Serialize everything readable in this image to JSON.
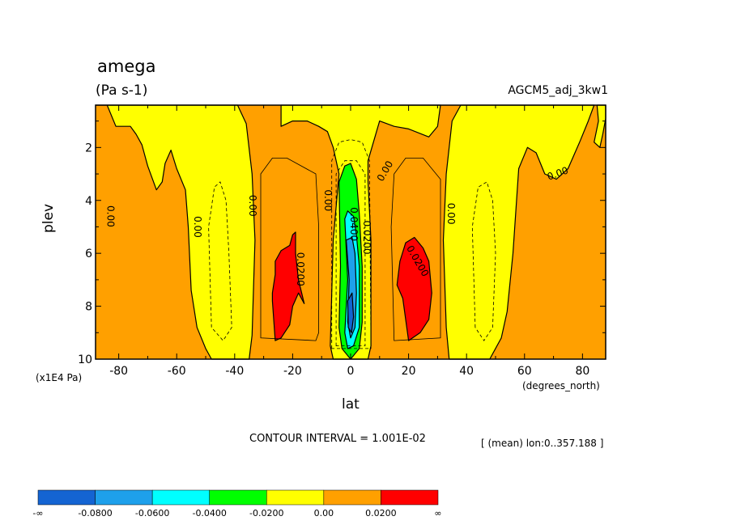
{
  "chart_data": {
    "type": "contour",
    "title": "amega",
    "units": "(Pa s-1)",
    "dataset": "AGCM5_adj_3kw1",
    "xlabel": "lat",
    "xunits": "(degrees_north)",
    "ylabel": "plev",
    "yunits": "(x1E4 Pa)",
    "xlim": [
      -88,
      88
    ],
    "ylim": [
      10,
      0.4
    ],
    "x_ticks": [
      -80,
      -60,
      -40,
      -20,
      0,
      20,
      40,
      60,
      80
    ],
    "x_tick_labels": [
      "-80",
      "-60",
      "-40",
      "-20",
      "0",
      "20",
      "40",
      "60",
      "80"
    ],
    "y_ticks": [
      2,
      4,
      6,
      8,
      10
    ],
    "y_tick_labels": [
      "2",
      "4",
      "6",
      "8",
      "10"
    ],
    "contour_interval": "CONTOUR INTERVAL = 1.001E-02",
    "mean_note": "[ (mean) lon:0..357.188 ]",
    "contour_labels": [
      {
        "text": "0.00",
        "lat": -83,
        "plev": 4.6,
        "rot": 90
      },
      {
        "text": "0.00",
        "lat": -53,
        "plev": 5.0,
        "rot": 90
      },
      {
        "text": "0.00",
        "lat": -34,
        "plev": 4.2,
        "rot": 90
      },
      {
        "text": "0.0200",
        "lat": -17.5,
        "plev": 6.6,
        "rot": 90
      },
      {
        "text": "0.00",
        "lat": -8,
        "plev": 4.0,
        "rot": 90
      },
      {
        "text": "0.0400",
        "lat": 1,
        "plev": 4.9,
        "rot": 90
      },
      {
        "text": "0.0200",
        "lat": 5.5,
        "plev": 5.4,
        "rot": 90
      },
      {
        "text": "0.00",
        "lat": 12,
        "plev": 2.9,
        "rot": -60
      },
      {
        "text": "0.0200",
        "lat": 23,
        "plev": 6.3,
        "rot": 60
      },
      {
        "text": "0.00",
        "lat": 34.5,
        "plev": 4.5,
        "rot": 90
      },
      {
        "text": "0.00",
        "lat": 71.5,
        "plev": 3.0,
        "rot": -20
      }
    ],
    "colorbar": {
      "colors": [
        "#1464d2",
        "#1ea0eb",
        "#00ffff",
        "#00ff00",
        "#ffff00",
        "#ffa000",
        "#ff0000"
      ],
      "labels": [
        "-∞",
        "-0.0800",
        "-0.0600",
        "-0.0400",
        "-0.0200",
        "0.00",
        "0.0200",
        "∞"
      ]
    },
    "regions": [
      {
        "level": "0.00 to 0.0200",
        "color": "#ffa000",
        "polygon": [
          [
            -88,
            0.4
          ],
          [
            -88,
            10
          ],
          [
            88,
            10
          ],
          [
            88,
            0.4
          ]
        ]
      },
      {
        "level": "-0.0200 to 0.00",
        "color": "#ffff00",
        "polygon": [
          [
            -88,
            0.4
          ],
          [
            -84,
            0.4
          ],
          [
            -81,
            1.2
          ],
          [
            -76,
            1.2
          ],
          [
            -74,
            1.5
          ],
          [
            -72,
            1.9
          ],
          [
            -70,
            2.7
          ],
          [
            -67,
            3.6
          ],
          [
            -65,
            3.3
          ],
          [
            -64,
            2.6
          ],
          [
            -62,
            2.1
          ],
          [
            -60,
            2.8
          ],
          [
            -57,
            3.6
          ],
          [
            -56,
            5.0
          ],
          [
            -55,
            7.4
          ],
          [
            -53,
            8.8
          ],
          [
            -50,
            9.6
          ],
          [
            -48,
            10
          ],
          [
            -35,
            10
          ],
          [
            -34,
            9.1
          ],
          [
            -33,
            5.5
          ],
          [
            -34,
            3.0
          ],
          [
            -36,
            1.1
          ],
          [
            -39,
            0.4
          ],
          [
            -88,
            0.4
          ]
        ]
      },
      {
        "level": "-0.0200 to 0.00",
        "color": "#ffff00",
        "polygon": [
          [
            -24,
            0.4
          ],
          [
            -24,
            1.2
          ],
          [
            -20,
            1.0
          ],
          [
            -15,
            1.0
          ],
          [
            -11,
            1.2
          ],
          [
            -8,
            1.4
          ],
          [
            -6,
            2.0
          ],
          [
            -4,
            3.0
          ],
          [
            -6,
            5.5
          ],
          [
            -7,
            9.5
          ],
          [
            -6,
            10
          ],
          [
            6,
            10
          ],
          [
            7,
            9.5
          ],
          [
            7,
            5.5
          ],
          [
            6,
            3.3
          ],
          [
            6,
            2.5
          ],
          [
            10,
            1.0
          ],
          [
            15,
            1.2
          ],
          [
            20,
            1.3
          ],
          [
            27,
            1.6
          ],
          [
            30,
            1.2
          ],
          [
            31,
            0.4
          ]
        ]
      },
      {
        "level": "-0.0200 to 0.00",
        "color": "#ffff00",
        "polygon": [
          [
            38,
            0.4
          ],
          [
            35,
            1.0
          ],
          [
            33,
            3.0
          ],
          [
            32,
            5.5
          ],
          [
            33,
            8.8
          ],
          [
            34,
            10
          ],
          [
            48,
            10
          ],
          [
            52,
            9.2
          ],
          [
            54,
            8.2
          ],
          [
            56,
            6.0
          ],
          [
            58,
            2.8
          ],
          [
            61,
            2.0
          ],
          [
            64,
            2.2
          ],
          [
            67,
            3.0
          ],
          [
            71,
            3.2
          ],
          [
            75,
            2.8
          ],
          [
            79,
            1.8
          ],
          [
            82,
            1.0
          ],
          [
            84,
            0.4
          ]
        ]
      },
      {
        "level": "-0.0200 to 0.00",
        "color": "#ffff00",
        "polygon": [
          [
            85,
            0.4
          ],
          [
            85.5,
            1.0
          ],
          [
            84,
            1.8
          ],
          [
            86,
            2.0
          ],
          [
            87,
            1.5
          ],
          [
            88,
            0.9
          ],
          [
            88,
            0.4
          ]
        ]
      },
      {
        "level": "0.0200 to inf",
        "color": "#ff0000",
        "polygon": [
          [
            -27,
            7.8
          ],
          [
            -26,
            9.3
          ],
          [
            -24,
            9.2
          ],
          [
            -21,
            8.7
          ],
          [
            -20,
            8.0
          ],
          [
            -18,
            7.5
          ],
          [
            -16,
            7.9
          ],
          [
            -18,
            7.0
          ],
          [
            -19,
            6.0
          ],
          [
            -19,
            5.2
          ],
          [
            -20,
            5.3
          ],
          [
            -21,
            5.7
          ],
          [
            -24,
            5.9
          ],
          [
            -26,
            6.3
          ],
          [
            -26,
            6.8
          ],
          [
            -27,
            7.5
          ]
        ]
      },
      {
        "level": "0.0200 to inf",
        "color": "#ff0000",
        "polygon": [
          [
            17,
            6.3
          ],
          [
            16,
            7.2
          ],
          [
            18,
            7.7
          ],
          [
            20,
            9.3
          ],
          [
            24,
            9.0
          ],
          [
            27,
            8.5
          ],
          [
            28,
            7.5
          ],
          [
            27,
            6.3
          ],
          [
            25,
            5.8
          ],
          [
            22,
            5.4
          ],
          [
            19,
            5.6
          ]
        ]
      },
      {
        "level": "-0.0400 to -0.0200",
        "color": "#00ff00",
        "polygon": [
          [
            -4,
            3.3
          ],
          [
            -3.5,
            6.5
          ],
          [
            -4,
            8.8
          ],
          [
            -3,
            9.6
          ],
          [
            0,
            10
          ],
          [
            3,
            9.6
          ],
          [
            4,
            8.6
          ],
          [
            4,
            6.5
          ],
          [
            3,
            4.5
          ],
          [
            2,
            3.2
          ],
          [
            0,
            2.6
          ],
          [
            -2,
            2.7
          ]
        ]
      },
      {
        "level": "-0.0600 to -0.0400",
        "color": "#00ffff",
        "polygon": [
          [
            -2,
            4.7
          ],
          [
            -1,
            7.0
          ],
          [
            -2,
            9.0
          ],
          [
            -1,
            9.6
          ],
          [
            1,
            9.5
          ],
          [
            3,
            8.8
          ],
          [
            3,
            6.5
          ],
          [
            2,
            5.3
          ],
          [
            1,
            4.6
          ],
          [
            -1,
            4.4
          ]
        ]
      },
      {
        "level": "-0.0800 to -0.0600",
        "color": "#1ea0eb",
        "polygon": [
          [
            -1.5,
            5.5
          ],
          [
            -0.5,
            7.0
          ],
          [
            -1,
            8.6
          ],
          [
            0,
            9.2
          ],
          [
            1.5,
            8.8
          ],
          [
            2,
            7.5
          ],
          [
            1.5,
            6.0
          ],
          [
            0.5,
            5.4
          ]
        ]
      },
      {
        "level": "-inf to -0.0800",
        "color": "#1464d2",
        "polygon": [
          [
            -1,
            7.8
          ],
          [
            -0.8,
            8.8
          ],
          [
            0.3,
            9.0
          ],
          [
            1,
            8.4
          ],
          [
            0.5,
            7.5
          ]
        ]
      }
    ],
    "contour_lines": [
      {
        "style": "solid",
        "polygon": [
          [
            -31,
            9.2
          ],
          [
            -31,
            3.0
          ],
          [
            -27,
            2.4
          ],
          [
            -22,
            2.4
          ],
          [
            -12,
            3.0
          ],
          [
            -11,
            5.0
          ],
          [
            -11,
            9.0
          ],
          [
            -12,
            9.3
          ]
        ]
      },
      {
        "style": "solid",
        "polygon": [
          [
            15,
            9.3
          ],
          [
            14,
            5.0
          ],
          [
            15,
            3.0
          ],
          [
            19,
            2.4
          ],
          [
            25,
            2.4
          ],
          [
            31,
            3.2
          ],
          [
            31,
            9.2
          ]
        ]
      },
      {
        "style": "dashed",
        "polygon": [
          [
            -48,
            8.8
          ],
          [
            -49,
            5.0
          ],
          [
            -47,
            3.5
          ],
          [
            -45,
            3.3
          ],
          [
            -43,
            4.0
          ],
          [
            -42,
            6.0
          ],
          [
            -41,
            8.8
          ],
          [
            -44,
            9.3
          ]
        ]
      },
      {
        "style": "dashed",
        "polygon": [
          [
            43,
            8.8
          ],
          [
            42,
            5.0
          ],
          [
            44,
            3.5
          ],
          [
            47,
            3.3
          ],
          [
            49,
            4.0
          ],
          [
            50,
            6.0
          ],
          [
            49,
            8.8
          ],
          [
            46,
            9.3
          ]
        ]
      },
      {
        "style": "dashed",
        "polygon": [
          [
            -6.5,
            9.6
          ],
          [
            -6.5,
            2.5
          ],
          [
            -4,
            1.8
          ],
          [
            0,
            1.7
          ],
          [
            4,
            1.8
          ],
          [
            6.5,
            2.5
          ],
          [
            7,
            9.6
          ]
        ]
      },
      {
        "style": "dashed",
        "polygon": [
          [
            -5,
            9.5
          ],
          [
            -5,
            3.0
          ],
          [
            -2,
            2.5
          ],
          [
            2,
            2.5
          ],
          [
            5,
            3.0
          ],
          [
            5,
            9.5
          ]
        ]
      }
    ]
  }
}
